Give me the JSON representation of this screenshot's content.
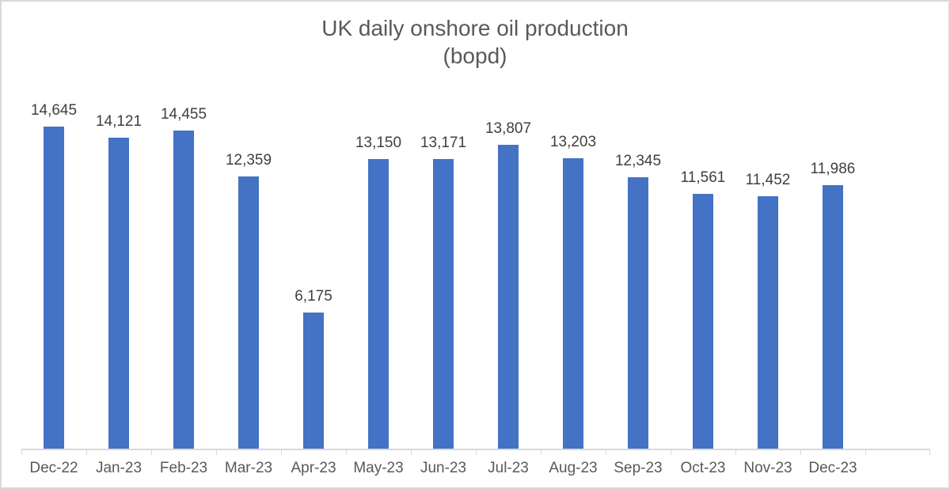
{
  "title": {
    "line1": "UK daily onshore oil production",
    "line2": "(bopd)"
  },
  "colors": {
    "bar": "#4472C4",
    "title_text": "#595959",
    "axis_text": "#595959",
    "data_label_text": "#404040",
    "axis_line": "#D9D9D9",
    "chart_border": "#D9D9D9",
    "background": "#FFFFFF"
  },
  "chart_data": {
    "type": "bar",
    "title": "UK daily onshore oil production (bopd)",
    "categories": [
      "Dec-22",
      "Jan-23",
      "Feb-23",
      "Mar-23",
      "Apr-23",
      "May-23",
      "Jun-23",
      "Jul-23",
      "Aug-23",
      "Sep-23",
      "Oct-23",
      "Nov-23",
      "Dec-23"
    ],
    "values": [
      14645,
      14121,
      14455,
      12359,
      6175,
      13150,
      13171,
      13807,
      13203,
      12345,
      11561,
      11452,
      11986
    ],
    "data_labels": [
      "14,645",
      "14,121",
      "14,455",
      "12,359",
      "6,175",
      "13,150",
      "13,171",
      "13,807",
      "13,203",
      "12,345",
      "11,561",
      "11,452",
      "11,986"
    ],
    "xlabel": "",
    "ylabel": "",
    "ylim": [
      0,
      16000
    ],
    "value_axis_visible": false,
    "gridlines": false,
    "legend": "none",
    "data_label_position": "outside-end",
    "trailing_empty_category_slots": 1
  }
}
